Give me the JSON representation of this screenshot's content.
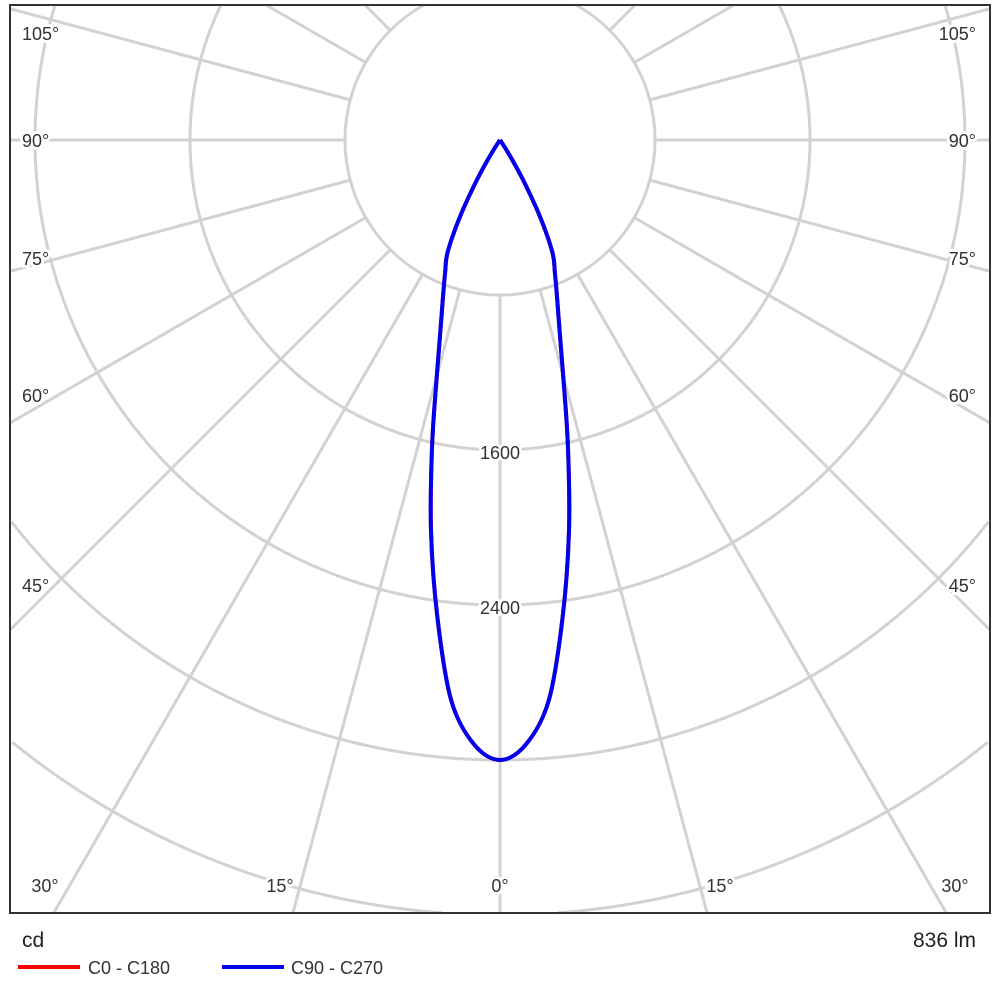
{
  "chart_data": {
    "type": "polar",
    "unit_label": "cd",
    "flux_label": "836 lm",
    "radial_ticks": [
      800,
      1600,
      2400,
      3200,
      4000,
      4800
    ],
    "radial_tick_labels": [
      "1600",
      "2400"
    ],
    "angle_step_deg": 15,
    "angle_labels_left": [
      "105°",
      "90°",
      "75°",
      "60°",
      "45°"
    ],
    "angle_labels_right": [
      "105°",
      "90°",
      "75°",
      "60°",
      "45°"
    ],
    "angle_labels_bottom": [
      "30°",
      "15°",
      "0°",
      "15°",
      "30°"
    ],
    "grid": true,
    "legend_position": "bottom-left",
    "angles_deg": [
      0,
      2.5,
      5,
      7.5,
      10,
      12.5,
      15,
      17.5,
      20,
      22.5,
      25,
      27.5,
      30,
      32.5,
      35
    ],
    "series": [
      {
        "name": "C0 - C180",
        "color": "#ff0000",
        "values": [
          3200,
          3120,
          2900,
          2480,
          2050,
          1620,
          1260,
          1020,
          860,
          740,
          640,
          450,
          240,
          80,
          0
        ]
      },
      {
        "name": "C90 - C270",
        "color": "#0000ee",
        "values": [
          3200,
          3120,
          2900,
          2480,
          2050,
          1620,
          1260,
          1020,
          860,
          740,
          640,
          450,
          240,
          80,
          0
        ]
      }
    ]
  }
}
